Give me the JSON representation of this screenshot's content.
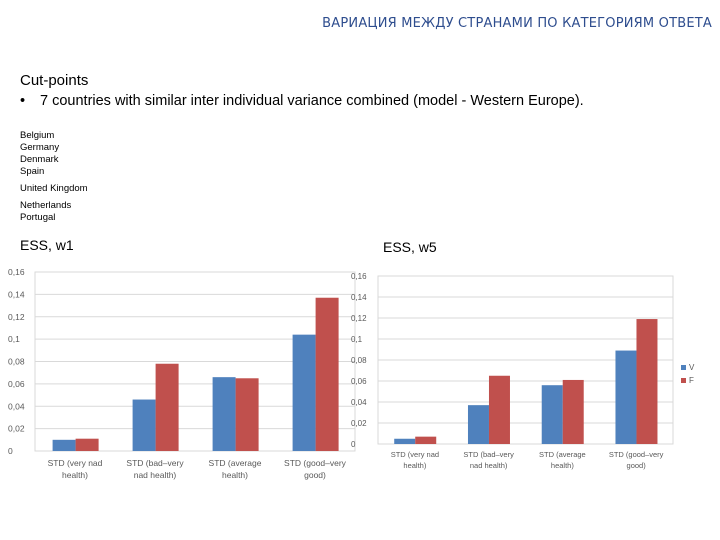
{
  "title": "ВАРИАЦИЯ МЕЖДУ СТРАНАМИ ПО КАТЕГОРИЯМ ОТВЕТА",
  "cutpoints": {
    "heading": "Cut-points",
    "bullet": "•",
    "text": "7 countries with similar inter individual variance combined (model - Western Europe)."
  },
  "countries": {
    "group1": [
      "Belgium",
      "Germany",
      "Denmark",
      "Spain"
    ],
    "group2": [
      "United Kingdom"
    ],
    "group3": [
      "Netherlands",
      "Portugal"
    ]
  },
  "labels": {
    "left": "ESS, w1",
    "right": "ESS, w5"
  },
  "colors": {
    "blue": "#4F81BD",
    "red": "#C0504D",
    "title": "#2E4D8E"
  },
  "chart_data": [
    {
      "type": "bar",
      "categories": [
        "STD (very nad health)",
        "STD (bad–very nad health)",
        "STD (average health)",
        "STD (good–very good)"
      ],
      "category_lines": [
        [
          "STD (very nad",
          "health)"
        ],
        [
          "STD (bad–very",
          "nad health)"
        ],
        [
          "STD (average",
          "health)"
        ],
        [
          "STD (good–very",
          "good)"
        ]
      ],
      "series": [
        {
          "values": [
            0.01,
            0.046,
            0.066,
            0.104
          ]
        },
        {
          "values": [
            0.011,
            0.078,
            0.065,
            0.137
          ]
        }
      ],
      "ylim": [
        0,
        0.16
      ],
      "yticks": [
        "0",
        "0,02",
        "0,04",
        "0,06",
        "0,08",
        "0,1",
        "0,12",
        "0,14",
        "0,16"
      ],
      "grid": true
    },
    {
      "type": "bar",
      "categories": [
        "STD (very nad health)",
        "STD (bad–very nad health)",
        "STD (average health)",
        "STD (good–very good)"
      ],
      "category_lines": [
        [
          "STD (very nad",
          "health)"
        ],
        [
          "STD (bad–very",
          "nad health)"
        ],
        [
          "STD (average",
          "health)"
        ],
        [
          "STD (good–very",
          "good)"
        ]
      ],
      "series": [
        {
          "name": "V",
          "values": [
            0.005,
            0.037,
            0.056,
            0.089
          ]
        },
        {
          "name": "F",
          "values": [
            0.007,
            0.065,
            0.061,
            0.119
          ]
        }
      ],
      "ylim": [
        0,
        0.16
      ],
      "yticks": [
        "0",
        "0,02",
        "0,04",
        "0,06",
        "0,08",
        "0,1",
        "0,12",
        "0,14",
        "0,16"
      ],
      "grid": true,
      "legend": "right"
    }
  ]
}
